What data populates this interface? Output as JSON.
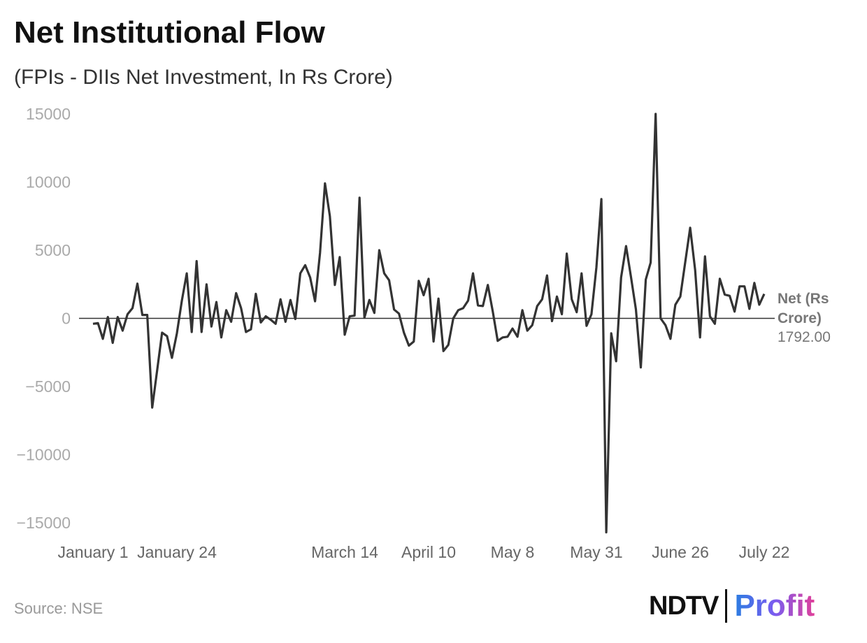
{
  "title": "Net Institutional Flow",
  "subtitle": "(FPIs - DIIs Net Investment, In Rs Crore)",
  "source": "Source: NSE",
  "logo": {
    "left": "NDTV",
    "right": "Profit"
  },
  "chart_data": {
    "type": "line",
    "title": "Net Institutional Flow",
    "subtitle": "(FPIs - DIIs Net Investment, In Rs Crore)",
    "ylim": [
      -15000,
      15000
    ],
    "y_ticks": [
      15000,
      10000,
      5000,
      0,
      -5000,
      -10000,
      -15000
    ],
    "y_tick_labels": [
      "15000",
      "10000",
      "5000",
      "0",
      "−5000",
      "−10000",
      "−15000"
    ],
    "x_ticks": [
      {
        "label": "January 1",
        "index": 0
      },
      {
        "label": "January 24",
        "index": 17
      },
      {
        "label": "March 14",
        "index": 51
      },
      {
        "label": "April 10",
        "index": 68
      },
      {
        "label": "May 8",
        "index": 85
      },
      {
        "label": "May 31",
        "index": 102
      },
      {
        "label": "June 26",
        "index": 119
      },
      {
        "label": "July 22",
        "index": 136
      }
    ],
    "grid": false,
    "series": [
      {
        "name": "Net (Rs Crore)",
        "color": "#333333",
        "last_value_label": "1792.00",
        "values": [
          -400,
          -350,
          -1500,
          100,
          -1800,
          100,
          -900,
          300,
          750,
          2550,
          250,
          250,
          -6550,
          -3800,
          -1050,
          -1300,
          -2900,
          -1100,
          1300,
          3300,
          -1000,
          4200,
          -1000,
          2500,
          -600,
          1200,
          -1400,
          600,
          -250,
          1850,
          750,
          -1000,
          -800,
          1800,
          -300,
          150,
          -100,
          -400,
          1400,
          -250,
          1350,
          -50,
          3300,
          3900,
          3000,
          1250,
          4800,
          9900,
          7500,
          2450,
          4500,
          -1200,
          150,
          200,
          8850,
          50,
          1350,
          400,
          5000,
          3300,
          2800,
          650,
          350,
          -1050,
          -2000,
          -1700,
          2750,
          1700,
          2900,
          -1700,
          1450,
          -2400,
          -1950,
          0,
          600,
          750,
          1300,
          3300,
          950,
          900,
          2450,
          500,
          -1650,
          -1400,
          -1350,
          -750,
          -1350,
          600,
          -900,
          -500,
          900,
          1400,
          3150,
          -200,
          1600,
          300,
          4750,
          1400,
          450,
          3300,
          -550,
          300,
          3750,
          8750,
          -15700,
          -1100,
          -3150,
          3000,
          5300,
          3050,
          650,
          -3600,
          2850,
          4100,
          15000,
          0,
          -500,
          -1500,
          1000,
          1600,
          4150,
          6650,
          3550,
          -1400,
          4550,
          150,
          -400,
          2900,
          1750,
          1650,
          500,
          2350,
          2350,
          700,
          2600,
          1000,
          1792
        ]
      }
    ]
  }
}
